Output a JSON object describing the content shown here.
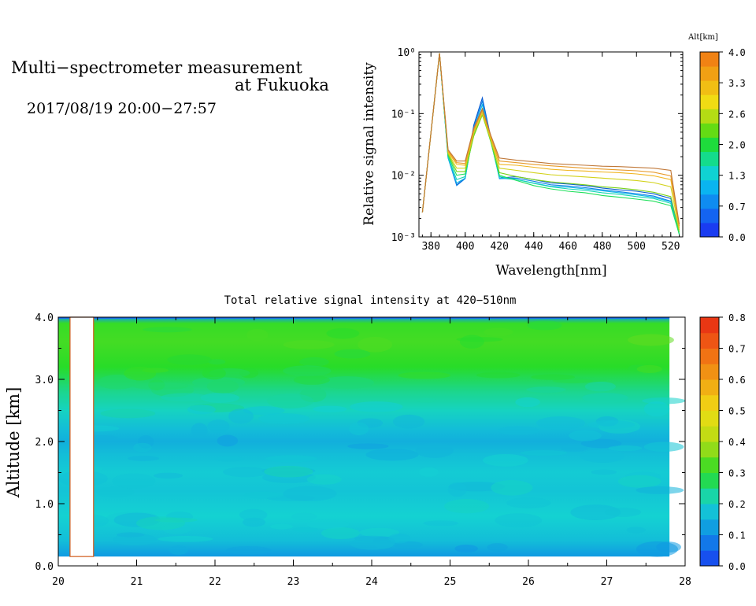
{
  "header": {
    "title_line1": "Multi−spectrometer measurement",
    "title_line2": "at Fukuoka",
    "subtitle": "2017/08/19 20:00−27:57"
  },
  "chart_data": [
    {
      "type": "line",
      "title": "",
      "xlabel": "Wavelength[nm]",
      "ylabel": "Relative signal intensity",
      "yscale": "log",
      "xlim": [
        373,
        527
      ],
      "ylim": [
        0.001,
        1
      ],
      "xticks": [
        380,
        400,
        420,
        440,
        460,
        480,
        500,
        520
      ],
      "yticks": [
        {
          "value": 0.001,
          "label": "10⁻³"
        },
        {
          "value": 0.01,
          "label": "10⁻²"
        },
        {
          "value": 0.1,
          "label": "10⁻¹"
        },
        {
          "value": 1,
          "label": "10⁰"
        }
      ],
      "x": [
        375,
        385,
        390,
        395,
        400,
        405,
        410,
        415,
        420,
        430,
        440,
        450,
        460,
        470,
        480,
        490,
        500,
        510,
        520,
        525
      ],
      "series": [
        {
          "alt": 0.3,
          "color": "#0a5ad2",
          "values": [
            0.0025,
            0.95,
            0.02,
            0.007,
            0.009,
            0.065,
            0.18,
            0.04,
            0.009,
            0.0095,
            0.0085,
            0.0075,
            0.0072,
            0.0068,
            0.0062,
            0.0058,
            0.0055,
            0.005,
            0.0042,
            0.0011
          ]
        },
        {
          "alt": 0.7,
          "color": "#0f83e8",
          "values": [
            0.0025,
            0.95,
            0.019,
            0.0068,
            0.0088,
            0.06,
            0.16,
            0.038,
            0.0088,
            0.009,
            0.008,
            0.007,
            0.0067,
            0.0063,
            0.0058,
            0.0054,
            0.005,
            0.0046,
            0.0038,
            0.0011
          ]
        },
        {
          "alt": 1.0,
          "color": "#10b8e6",
          "values": [
            0.0025,
            0.95,
            0.019,
            0.0075,
            0.009,
            0.055,
            0.14,
            0.035,
            0.009,
            0.0085,
            0.0075,
            0.0066,
            0.0064,
            0.006,
            0.0056,
            0.0052,
            0.0048,
            0.0044,
            0.0037,
            0.0011
          ]
        },
        {
          "alt": 1.3,
          "color": "#14d6b4",
          "values": [
            0.0025,
            0.95,
            0.02,
            0.0085,
            0.0095,
            0.05,
            0.12,
            0.035,
            0.0095,
            0.0085,
            0.0074,
            0.0065,
            0.006,
            0.0057,
            0.0052,
            0.0049,
            0.0045,
            0.0042,
            0.0035,
            0.0011
          ]
        },
        {
          "alt": 1.7,
          "color": "#1ee05a",
          "values": [
            0.0025,
            0.95,
            0.021,
            0.01,
            0.0105,
            0.045,
            0.1,
            0.034,
            0.01,
            0.0082,
            0.0068,
            0.006,
            0.0055,
            0.0052,
            0.0047,
            0.0044,
            0.0041,
            0.0038,
            0.0032,
            0.0011
          ]
        },
        {
          "alt": 2.0,
          "color": "#7ad21a",
          "values": [
            0.0025,
            0.95,
            0.022,
            0.0115,
            0.0115,
            0.043,
            0.095,
            0.035,
            0.011,
            0.0095,
            0.0085,
            0.0078,
            0.0074,
            0.007,
            0.0065,
            0.0062,
            0.0058,
            0.0053,
            0.0045,
            0.0012
          ]
        },
        {
          "alt": 2.6,
          "color": "#d2d21a",
          "values": [
            0.0025,
            0.95,
            0.023,
            0.013,
            0.013,
            0.048,
            0.1,
            0.037,
            0.013,
            0.012,
            0.011,
            0.0102,
            0.0098,
            0.0094,
            0.009,
            0.0086,
            0.0082,
            0.0076,
            0.0065,
            0.0013
          ]
        },
        {
          "alt": 3.3,
          "color": "#f0b41e",
          "values": [
            0.0025,
            0.95,
            0.024,
            0.015,
            0.0145,
            0.052,
            0.11,
            0.04,
            0.015,
            0.0145,
            0.0135,
            0.0125,
            0.012,
            0.0117,
            0.0113,
            0.011,
            0.0105,
            0.0098,
            0.0085,
            0.0014
          ]
        },
        {
          "alt": 3.7,
          "color": "#e89a28",
          "values": [
            0.0025,
            0.95,
            0.025,
            0.016,
            0.0155,
            0.055,
            0.115,
            0.042,
            0.017,
            0.016,
            0.015,
            0.0142,
            0.0136,
            0.013,
            0.0126,
            0.0122,
            0.0118,
            0.0112,
            0.0098,
            0.0015
          ]
        },
        {
          "alt": 4.0,
          "color": "#c07838",
          "values": [
            0.0025,
            0.95,
            0.026,
            0.017,
            0.017,
            0.058,
            0.12,
            0.044,
            0.019,
            0.0175,
            0.0165,
            0.0155,
            0.015,
            0.0145,
            0.014,
            0.0138,
            0.0134,
            0.013,
            0.012,
            0.0016
          ]
        }
      ],
      "colorbar": {
        "title": "Alt[km]",
        "range": [
          0,
          4
        ],
        "tick_labels": [
          "0.0",
          "0.7",
          "1.3",
          "2.0",
          "2.6",
          "3.3",
          "4.0"
        ],
        "colors": [
          "#1a3cf0",
          "#1464f0",
          "#0f8cf0",
          "#0ab4f0",
          "#10d2d2",
          "#14dc8c",
          "#1edc3c",
          "#64dc14",
          "#b4dc14",
          "#f0dc14",
          "#f0be14",
          "#f0a014",
          "#f08214"
        ]
      }
    },
    {
      "type": "heatmap",
      "title": "Total relative signal intensity at 420−510nm",
      "xlabel": "",
      "ylabel": "Altitude [km]",
      "xlim": [
        20,
        28
      ],
      "ylim": [
        0,
        4
      ],
      "data_xrange": [
        20,
        27.8
      ],
      "data_yrange": [
        0.15,
        4.0
      ],
      "missing_x": [
        20.15,
        20.45
      ],
      "xticks": [
        "20",
        "21",
        "22",
        "23",
        "24",
        "25",
        "26",
        "27",
        "28"
      ],
      "yticks": [
        "0.0",
        "1.0",
        "2.0",
        "3.0",
        "4.0"
      ],
      "profile_altitudes": [
        0.15,
        0.4,
        0.8,
        1.2,
        1.5,
        1.8,
        2.0,
        2.2,
        2.5,
        2.8,
        3.2,
        3.6,
        3.9,
        4.0
      ],
      "profile_values": [
        0.12,
        0.17,
        0.2,
        0.18,
        0.19,
        0.17,
        0.15,
        0.17,
        0.21,
        0.24,
        0.3,
        0.32,
        0.31,
        0.12
      ],
      "colorbar": {
        "range": [
          0,
          0.8
        ],
        "tick_labels": [
          "0.0",
          "0.1",
          "0.2",
          "0.3",
          "0.4",
          "0.5",
          "0.6",
          "0.7",
          "0.8"
        ],
        "stops": [
          {
            "v": 0.0,
            "c": "#1a3cf0"
          },
          {
            "v": 0.1,
            "c": "#0f8ce6"
          },
          {
            "v": 0.2,
            "c": "#14d2d2"
          },
          {
            "v": 0.3,
            "c": "#28dc28"
          },
          {
            "v": 0.4,
            "c": "#b4dc14"
          },
          {
            "v": 0.5,
            "c": "#f0dc14"
          },
          {
            "v": 0.6,
            "c": "#f0a014"
          },
          {
            "v": 0.7,
            "c": "#f06414"
          },
          {
            "v": 0.8,
            "c": "#e62814"
          }
        ]
      }
    }
  ]
}
